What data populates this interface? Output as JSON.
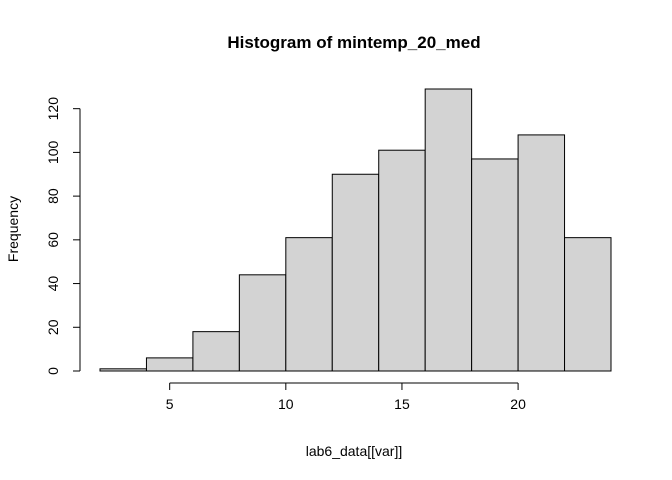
{
  "chart_data": {
    "type": "bar",
    "title": "Histogram of mintemp_20_med",
    "xlabel": "lab6_data[[var]]",
    "ylabel": "Frequency",
    "bins": [
      {
        "start": 2,
        "end": 4,
        "count": 1
      },
      {
        "start": 4,
        "end": 6,
        "count": 6
      },
      {
        "start": 6,
        "end": 8,
        "count": 18
      },
      {
        "start": 8,
        "end": 10,
        "count": 44
      },
      {
        "start": 10,
        "end": 12,
        "count": 61
      },
      {
        "start": 12,
        "end": 14,
        "count": 90
      },
      {
        "start": 14,
        "end": 16,
        "count": 101
      },
      {
        "start": 16,
        "end": 18,
        "count": 129
      },
      {
        "start": 18,
        "end": 20,
        "count": 97
      },
      {
        "start": 20,
        "end": 22,
        "count": 108
      },
      {
        "start": 22,
        "end": 24,
        "count": 61
      }
    ],
    "xlim": [
      2,
      24
    ],
    "ylim": [
      0,
      129
    ],
    "xticks": [
      5,
      10,
      15,
      20
    ],
    "yticks": [
      0,
      20,
      40,
      60,
      80,
      100,
      120
    ],
    "bar_color": "#d3d3d3",
    "grid": false,
    "legend": "none"
  }
}
